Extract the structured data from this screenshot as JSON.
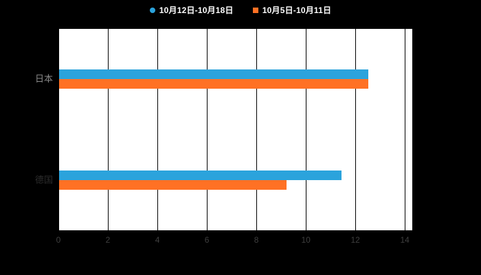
{
  "legend": {
    "items": [
      {
        "label": "10月12日-10月18日",
        "color": "#2BA3DC",
        "marker": "circle"
      },
      {
        "label": "10月5日-10月11日",
        "color": "#FF7124",
        "marker": "square"
      }
    ]
  },
  "chart_data": {
    "type": "bar",
    "orientation": "horizontal",
    "title": "",
    "categories": [
      "日本",
      "德国"
    ],
    "series": [
      {
        "name": "10月12日-10月18日",
        "color": "#2BA3DC",
        "values": [
          12.5,
          11.4
        ]
      },
      {
        "name": "10月5日-10月11日",
        "color": "#FF7124",
        "values": [
          12.5,
          9.2
        ]
      }
    ],
    "xlim": [
      0,
      14.3
    ],
    "xticks": [
      0,
      2,
      4,
      6,
      8,
      10,
      12,
      14
    ],
    "grid": true,
    "legend_position": "top",
    "plot_background": "#ffffff",
    "page_background": "#000000",
    "gridline_color": "#000000",
    "tick_label_color": "#3f3f3f",
    "category_label_colors": [
      "#8a8a8a",
      "#2d2d2d"
    ]
  }
}
